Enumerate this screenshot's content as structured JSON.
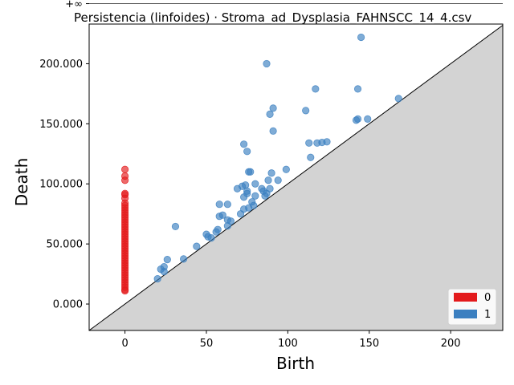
{
  "chart_data": {
    "type": "scatter",
    "title": "Persistencia (linfoides) · Stroma_ad_Dysplasia_FAHNSCC_14_4.csv",
    "xlabel": "Birth",
    "ylabel": "Death",
    "xlim": [
      -22,
      232
    ],
    "ylim": [
      -22000,
      233000
    ],
    "x_ticks": [
      0,
      50,
      100,
      150,
      200
    ],
    "x_tick_labels": [
      "0",
      "50",
      "100",
      "150",
      "200"
    ],
    "y_ticks": [
      0,
      50000,
      100000,
      150000,
      200000
    ],
    "y_tick_labels": [
      "0.000",
      "50.000",
      "100.000",
      "150.000",
      "200.000"
    ],
    "infinity_value": 250000,
    "infinity_label": "+∞",
    "diagonal": true,
    "legend_position": "lower-right",
    "colors": {
      "dim0": "#e31a1c",
      "dim1": "#3b7fc0",
      "diagonal_fill": "#d3d3d3",
      "infinity_line": "#555555"
    },
    "series": [
      {
        "name": "0",
        "points": [
          [
            0,
            250000
          ],
          [
            0,
            112000
          ],
          [
            0,
            106500
          ],
          [
            0,
            103000
          ],
          [
            0,
            92000
          ],
          [
            0,
            91000
          ],
          [
            0,
            88000
          ],
          [
            0,
            84000
          ],
          [
            0,
            82000
          ],
          [
            0,
            80000
          ],
          [
            0,
            78000
          ],
          [
            0,
            76000
          ],
          [
            0,
            74000
          ],
          [
            0,
            72000
          ],
          [
            0,
            70000
          ],
          [
            0,
            68000
          ],
          [
            0,
            66000
          ],
          [
            0,
            64000
          ],
          [
            0,
            62000
          ],
          [
            0,
            60000
          ],
          [
            0,
            58000
          ],
          [
            0,
            56000
          ],
          [
            0,
            54000
          ],
          [
            0,
            52000
          ],
          [
            0,
            50000
          ],
          [
            0,
            48000
          ],
          [
            0,
            46000
          ],
          [
            0,
            44000
          ],
          [
            0,
            42000
          ],
          [
            0,
            40000
          ],
          [
            0,
            38000
          ],
          [
            0,
            36000
          ],
          [
            0,
            34000
          ],
          [
            0,
            32000
          ],
          [
            0,
            30000
          ],
          [
            0,
            28000
          ],
          [
            0,
            26000
          ],
          [
            0,
            24000
          ],
          [
            0,
            22000
          ],
          [
            0,
            20000
          ],
          [
            0,
            18000
          ],
          [
            0,
            16000
          ],
          [
            0,
            14000
          ],
          [
            0,
            12000
          ],
          [
            0,
            11000
          ]
        ]
      },
      {
        "name": "1",
        "points": [
          [
            145,
            222000
          ],
          [
            87,
            200000
          ],
          [
            117,
            179000
          ],
          [
            143,
            179000
          ],
          [
            168,
            171000
          ],
          [
            91,
            163000
          ],
          [
            111,
            161000
          ],
          [
            89,
            158000
          ],
          [
            149,
            154000
          ],
          [
            143,
            154000
          ],
          [
            142,
            153000
          ],
          [
            91,
            144000
          ],
          [
            113,
            134000
          ],
          [
            118,
            134000
          ],
          [
            121,
            134500
          ],
          [
            124,
            135000
          ],
          [
            73,
            133000
          ],
          [
            75,
            127000
          ],
          [
            114,
            122000
          ],
          [
            99,
            112000
          ],
          [
            76,
            110000
          ],
          [
            77,
            110000
          ],
          [
            90,
            109000
          ],
          [
            94,
            103000
          ],
          [
            88,
            103000
          ],
          [
            80,
            100000
          ],
          [
            74,
            99000
          ],
          [
            72,
            98000
          ],
          [
            69,
            96000
          ],
          [
            84,
            96000
          ],
          [
            89,
            96000
          ],
          [
            85,
            94000
          ],
          [
            75,
            94000
          ],
          [
            75,
            92000
          ],
          [
            87,
            92000
          ],
          [
            86,
            90000
          ],
          [
            80,
            90000
          ],
          [
            73,
            89000
          ],
          [
            78,
            85000
          ],
          [
            58,
            83000
          ],
          [
            63,
            83000
          ],
          [
            79,
            82000
          ],
          [
            73,
            79000
          ],
          [
            76,
            80000
          ],
          [
            71,
            75000
          ],
          [
            60,
            74000
          ],
          [
            58,
            73000
          ],
          [
            63,
            70000
          ],
          [
            65,
            69000
          ],
          [
            63,
            65000
          ],
          [
            31,
            64500
          ],
          [
            57,
            62000
          ],
          [
            56,
            60000
          ],
          [
            50,
            58000
          ],
          [
            51,
            56000
          ],
          [
            53,
            55000
          ],
          [
            44,
            48000
          ],
          [
            26,
            37000
          ],
          [
            36,
            37500
          ],
          [
            24,
            31000
          ],
          [
            22,
            29000
          ],
          [
            24,
            27000
          ],
          [
            20,
            21000
          ]
        ]
      }
    ]
  }
}
